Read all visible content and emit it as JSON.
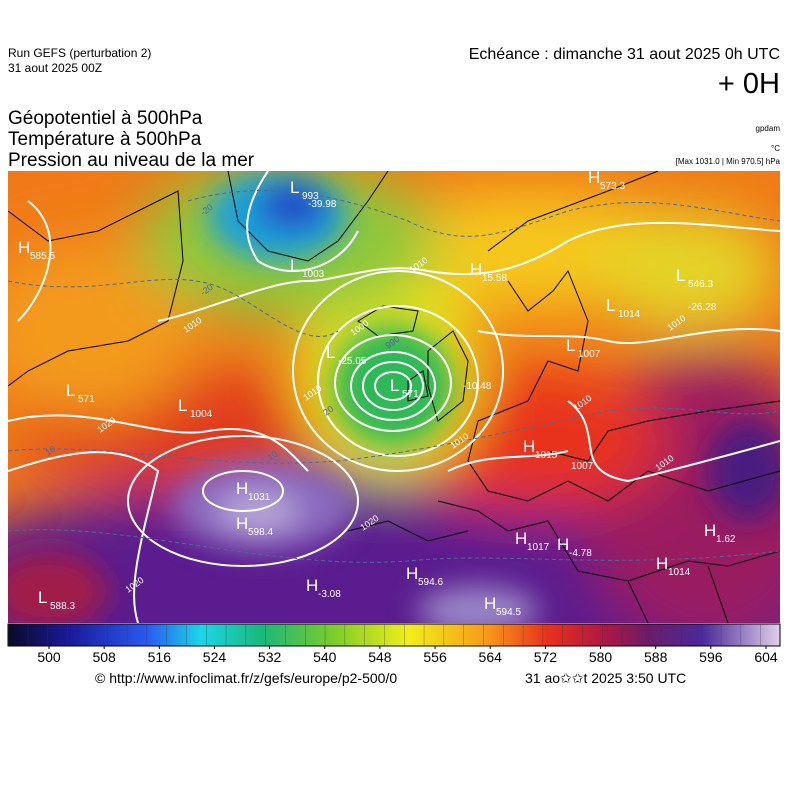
{
  "header": {
    "run": "Run GEFS (perturbation 2)",
    "run_date": "31 aout 2025 00Z",
    "echeance": "Echéance : dimanche 31 aout 2025 0h UTC",
    "offset": "+ 0H",
    "fields": [
      "Géopotentiel à 500hPa",
      "Température à 500hPa",
      "Pression au niveau de la mer"
    ],
    "unit_geopotential": "gpdam",
    "unit_temperature": "°C",
    "pressure_range": "[Max 1031.0 | Min 970.5] hPa"
  },
  "map": {
    "centers": [
      {
        "letter": "H",
        "value": "585.5"
      },
      {
        "letter": "L",
        "value": "993"
      },
      {
        "letter": "",
        "value": "-39.98"
      },
      {
        "letter": "L",
        "value": "1003"
      },
      {
        "letter": "H",
        "value": "15.58"
      },
      {
        "letter": "H",
        "value": "573.3"
      },
      {
        "letter": "L",
        "value": "546.3"
      },
      {
        "letter": "",
        "value": "-26.28"
      },
      {
        "letter": "L",
        "value": "1014"
      },
      {
        "letter": "L",
        "value": "1007"
      },
      {
        "letter": "L",
        "value": "-25.05"
      },
      {
        "letter": "L",
        "value": "571"
      },
      {
        "letter": "",
        "value": "-10.48"
      },
      {
        "letter": "L",
        "value": "571"
      },
      {
        "letter": "L",
        "value": "1004"
      },
      {
        "letter": "H",
        "value": "1015"
      },
      {
        "letter": "",
        "value": "1007"
      },
      {
        "letter": "H",
        "value": "1031"
      },
      {
        "letter": "H",
        "value": "598.4"
      },
      {
        "letter": "H",
        "value": "1017"
      },
      {
        "letter": "H",
        "value": "-4.78"
      },
      {
        "letter": "H",
        "value": "1.62"
      },
      {
        "letter": "H",
        "value": "1014"
      },
      {
        "letter": "H",
        "value": "-3.08"
      },
      {
        "letter": "H",
        "value": "594.6"
      },
      {
        "letter": "L",
        "value": "588.3"
      },
      {
        "letter": "H",
        "value": "594.5"
      }
    ],
    "contour_labels": [
      "1010",
      "1010",
      "1010",
      "1010",
      "1010",
      "1010",
      "1020",
      "1020",
      "1020",
      "1000",
      "990",
      "1010",
      "-20",
      "-20",
      "20",
      "10",
      "10"
    ]
  },
  "colorbar": {
    "ticks": [
      500,
      508,
      516,
      524,
      532,
      540,
      548,
      556,
      564,
      572,
      580,
      588,
      596,
      604
    ]
  },
  "footer": {
    "url": "© http://www.infoclimat.fr/z/gefs/europe/p2-500/0",
    "generated": "31 ao✩✩t 2025  3:50 UTC"
  }
}
